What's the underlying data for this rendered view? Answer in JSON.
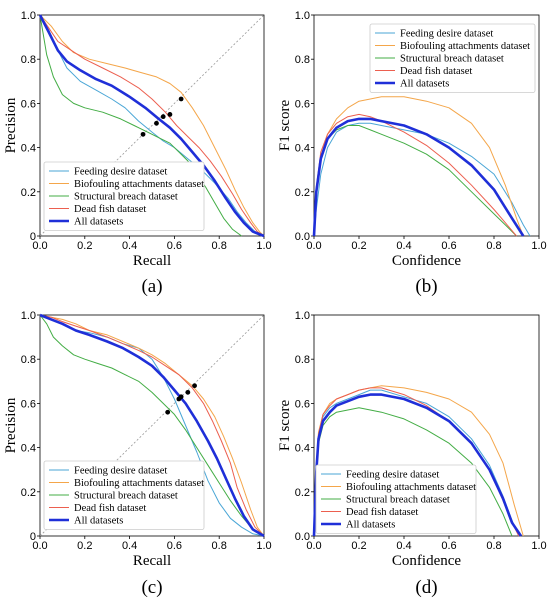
{
  "colors": {
    "feeding": "#4aa6d6",
    "biofouling": "#f4a64a",
    "structural": "#43ad45",
    "deadfish": "#ec5f4f",
    "all": "#1f2fd8"
  },
  "chart_data": [
    {
      "id": "a",
      "type": "line",
      "panel_label": "(a)",
      "xlabel": "Recall",
      "ylabel": "Precision",
      "xlim": [
        0,
        1
      ],
      "ylim": [
        0,
        1
      ],
      "xticks": [
        "0.0",
        "0.2",
        "0.4",
        "0.6",
        "0.8",
        "1.0"
      ],
      "yticks": [
        "0",
        "0.2",
        "0.4",
        "0.6",
        "0.8",
        "1.0"
      ],
      "diagonal": true,
      "legend_position": "bottom-left",
      "series": [
        {
          "name": "Feeding desire dataset",
          "color_key": "feeding",
          "width": 1,
          "x": [
            0,
            0.04,
            0.08,
            0.12,
            0.18,
            0.25,
            0.32,
            0.38,
            0.44,
            0.5,
            0.55,
            0.6,
            0.66,
            0.72,
            0.78,
            0.84,
            0.88,
            0.92,
            0.96,
            1.0
          ],
          "y": [
            1,
            0.93,
            0.84,
            0.76,
            0.7,
            0.66,
            0.62,
            0.58,
            0.52,
            0.47,
            0.43,
            0.4,
            0.35,
            0.3,
            0.24,
            0.17,
            0.11,
            0.06,
            0.02,
            0
          ]
        },
        {
          "name": "Biofouling attachments dataset",
          "color_key": "biofouling",
          "width": 1,
          "x": [
            0,
            0.05,
            0.1,
            0.15,
            0.22,
            0.3,
            0.38,
            0.45,
            0.52,
            0.58,
            0.63,
            0.68,
            0.73,
            0.78,
            0.83,
            0.87,
            0.91,
            0.95,
            0.98,
            1.0
          ],
          "y": [
            1,
            0.95,
            0.88,
            0.83,
            0.8,
            0.78,
            0.76,
            0.74,
            0.72,
            0.69,
            0.65,
            0.58,
            0.5,
            0.4,
            0.3,
            0.21,
            0.13,
            0.06,
            0.02,
            0
          ]
        },
        {
          "name": "Structural breach dataset",
          "color_key": "structural",
          "width": 1,
          "x": [
            0,
            0.03,
            0.06,
            0.1,
            0.15,
            0.2,
            0.28,
            0.36,
            0.42,
            0.48,
            0.54,
            0.58,
            0.62,
            0.66,
            0.7,
            0.74,
            0.78,
            0.82,
            0.86,
            0.9
          ],
          "y": [
            1,
            0.82,
            0.72,
            0.64,
            0.6,
            0.58,
            0.56,
            0.53,
            0.5,
            0.47,
            0.44,
            0.42,
            0.38,
            0.34,
            0.28,
            0.22,
            0.15,
            0.08,
            0.03,
            0
          ]
        },
        {
          "name": "Dead fish dataset",
          "color_key": "deadfish",
          "width": 1,
          "x": [
            0,
            0.04,
            0.08,
            0.14,
            0.2,
            0.28,
            0.36,
            0.44,
            0.5,
            0.56,
            0.61,
            0.66,
            0.71,
            0.76,
            0.81,
            0.86,
            0.9,
            0.94,
            0.97,
            1.0
          ],
          "y": [
            1,
            0.94,
            0.88,
            0.84,
            0.8,
            0.76,
            0.72,
            0.67,
            0.62,
            0.56,
            0.5,
            0.45,
            0.4,
            0.34,
            0.27,
            0.19,
            0.12,
            0.06,
            0.02,
            0
          ]
        },
        {
          "name": "All datasets",
          "color_key": "all",
          "width": 2.6,
          "x": [
            0,
            0.04,
            0.08,
            0.12,
            0.18,
            0.25,
            0.32,
            0.4,
            0.47,
            0.53,
            0.58,
            0.63,
            0.68,
            0.73,
            0.78,
            0.83,
            0.87,
            0.91,
            0.95,
            1.0
          ],
          "y": [
            1,
            0.92,
            0.84,
            0.79,
            0.75,
            0.71,
            0.68,
            0.63,
            0.58,
            0.53,
            0.49,
            0.44,
            0.38,
            0.32,
            0.25,
            0.17,
            0.11,
            0.06,
            0.02,
            0
          ]
        }
      ],
      "markers": [
        {
          "x": 0.46,
          "y": 0.46
        },
        {
          "x": 0.52,
          "y": 0.51
        },
        {
          "x": 0.55,
          "y": 0.54
        },
        {
          "x": 0.58,
          "y": 0.55
        },
        {
          "x": 0.63,
          "y": 0.62
        }
      ]
    },
    {
      "id": "b",
      "type": "line",
      "panel_label": "(b)",
      "xlabel": "Confidence",
      "ylabel": "F1 score",
      "xlim": [
        0,
        1
      ],
      "ylim": [
        0,
        1
      ],
      "xticks": [
        "0.0",
        "0.2",
        "0.4",
        "0.6",
        "0.8",
        "1.0"
      ],
      "yticks": [
        "0.0",
        "0.2",
        "0.4",
        "0.6",
        "0.8",
        "1.0"
      ],
      "diagonal": false,
      "legend_position": "top-right",
      "series": [
        {
          "name": "Feeding desire dataset",
          "color_key": "feeding",
          "width": 1,
          "x": [
            0,
            0.01,
            0.03,
            0.06,
            0.1,
            0.15,
            0.2,
            0.25,
            0.3,
            0.4,
            0.5,
            0.6,
            0.7,
            0.8,
            0.88,
            0.93,
            0.96
          ],
          "y": [
            0,
            0.12,
            0.28,
            0.4,
            0.47,
            0.5,
            0.51,
            0.51,
            0.5,
            0.48,
            0.46,
            0.42,
            0.36,
            0.28,
            0.15,
            0.05,
            0
          ]
        },
        {
          "name": "Biofouling attachments dataset",
          "color_key": "biofouling",
          "width": 1,
          "x": [
            0,
            0.01,
            0.03,
            0.06,
            0.1,
            0.15,
            0.2,
            0.25,
            0.3,
            0.4,
            0.5,
            0.6,
            0.7,
            0.78,
            0.85,
            0.9,
            0.93
          ],
          "y": [
            0,
            0.2,
            0.36,
            0.46,
            0.53,
            0.58,
            0.61,
            0.62,
            0.63,
            0.63,
            0.61,
            0.58,
            0.51,
            0.4,
            0.23,
            0.08,
            0
          ]
        },
        {
          "name": "Structural breach dataset",
          "color_key": "structural",
          "width": 1,
          "x": [
            0,
            0.01,
            0.03,
            0.06,
            0.1,
            0.15,
            0.2,
            0.25,
            0.3,
            0.4,
            0.5,
            0.6,
            0.7,
            0.8,
            0.85,
            0.9
          ],
          "y": [
            0,
            0.2,
            0.36,
            0.44,
            0.48,
            0.5,
            0.5,
            0.48,
            0.46,
            0.42,
            0.37,
            0.3,
            0.2,
            0.1,
            0.05,
            0
          ]
        },
        {
          "name": "Dead fish dataset",
          "color_key": "deadfish",
          "width": 1,
          "x": [
            0,
            0.01,
            0.03,
            0.06,
            0.1,
            0.15,
            0.2,
            0.25,
            0.3,
            0.4,
            0.5,
            0.6,
            0.7,
            0.8,
            0.85,
            0.9
          ],
          "y": [
            0,
            0.22,
            0.38,
            0.46,
            0.51,
            0.54,
            0.55,
            0.54,
            0.52,
            0.47,
            0.41,
            0.33,
            0.23,
            0.12,
            0.06,
            0
          ]
        },
        {
          "name": "All datasets",
          "color_key": "all",
          "width": 2.6,
          "x": [
            0,
            0.01,
            0.03,
            0.06,
            0.1,
            0.15,
            0.2,
            0.25,
            0.3,
            0.4,
            0.5,
            0.6,
            0.7,
            0.8,
            0.88,
            0.93
          ],
          "y": [
            0,
            0.2,
            0.35,
            0.44,
            0.49,
            0.52,
            0.53,
            0.53,
            0.52,
            0.5,
            0.46,
            0.4,
            0.32,
            0.21,
            0.08,
            0
          ]
        }
      ]
    },
    {
      "id": "c",
      "type": "line",
      "panel_label": "(c)",
      "xlabel": "Recall",
      "ylabel": "Precision",
      "xlim": [
        0,
        1
      ],
      "ylim": [
        0,
        1
      ],
      "xticks": [
        "0.0",
        "0.2",
        "0.4",
        "0.6",
        "0.8",
        "1.0"
      ],
      "yticks": [
        "0",
        "0.2",
        "0.4",
        "0.6",
        "0.8",
        "1.0"
      ],
      "diagonal": true,
      "legend_position": "bottom-left",
      "series": [
        {
          "name": "Feeding desire dataset",
          "color_key": "feeding",
          "width": 1,
          "x": [
            0,
            0.05,
            0.1,
            0.16,
            0.22,
            0.3,
            0.37,
            0.44,
            0.5,
            0.55,
            0.6,
            0.65,
            0.7,
            0.75,
            0.8,
            0.85,
            0.9,
            0.95,
            1.0
          ],
          "y": [
            1,
            0.98,
            0.96,
            0.93,
            0.92,
            0.9,
            0.87,
            0.85,
            0.8,
            0.72,
            0.62,
            0.5,
            0.38,
            0.25,
            0.15,
            0.08,
            0.04,
            0.01,
            0
          ]
        },
        {
          "name": "Biofouling attachments dataset",
          "color_key": "biofouling",
          "width": 1,
          "x": [
            0,
            0.05,
            0.1,
            0.16,
            0.22,
            0.3,
            0.37,
            0.44,
            0.5,
            0.56,
            0.62,
            0.68,
            0.73,
            0.78,
            0.82,
            0.86,
            0.9,
            0.94,
            0.97,
            1.0
          ],
          "y": [
            1,
            0.99,
            0.98,
            0.96,
            0.93,
            0.91,
            0.88,
            0.85,
            0.82,
            0.78,
            0.73,
            0.68,
            0.62,
            0.54,
            0.45,
            0.35,
            0.24,
            0.12,
            0.04,
            0
          ]
        },
        {
          "name": "Structural breach dataset",
          "color_key": "structural",
          "width": 1,
          "x": [
            0,
            0.03,
            0.06,
            0.1,
            0.15,
            0.2,
            0.26,
            0.32,
            0.38,
            0.44,
            0.5,
            0.55,
            0.6,
            0.65,
            0.7,
            0.75,
            0.8,
            0.85,
            0.9,
            0.95,
            1.0
          ],
          "y": [
            1,
            0.96,
            0.9,
            0.86,
            0.82,
            0.8,
            0.78,
            0.76,
            0.73,
            0.7,
            0.65,
            0.6,
            0.55,
            0.48,
            0.4,
            0.32,
            0.24,
            0.16,
            0.09,
            0.03,
            0
          ]
        },
        {
          "name": "Dead fish dataset",
          "color_key": "deadfish",
          "width": 1,
          "x": [
            0,
            0.05,
            0.1,
            0.16,
            0.22,
            0.3,
            0.37,
            0.44,
            0.5,
            0.56,
            0.62,
            0.68,
            0.73,
            0.77,
            0.81,
            0.85,
            0.88,
            0.92,
            0.96,
            1.0
          ],
          "y": [
            1,
            0.99,
            0.97,
            0.95,
            0.93,
            0.9,
            0.87,
            0.84,
            0.81,
            0.77,
            0.73,
            0.67,
            0.6,
            0.52,
            0.43,
            0.33,
            0.22,
            0.12,
            0.04,
            0
          ]
        },
        {
          "name": "All datasets",
          "color_key": "all",
          "width": 2.6,
          "x": [
            0,
            0.05,
            0.1,
            0.16,
            0.22,
            0.3,
            0.37,
            0.44,
            0.5,
            0.55,
            0.6,
            0.65,
            0.7,
            0.75,
            0.79,
            0.83,
            0.87,
            0.91,
            0.95,
            1.0
          ],
          "y": [
            1,
            0.98,
            0.96,
            0.93,
            0.91,
            0.88,
            0.85,
            0.81,
            0.77,
            0.72,
            0.66,
            0.6,
            0.52,
            0.43,
            0.35,
            0.26,
            0.17,
            0.09,
            0.03,
            0
          ]
        }
      ],
      "markers": [
        {
          "x": 0.57,
          "y": 0.56
        },
        {
          "x": 0.62,
          "y": 0.62
        },
        {
          "x": 0.63,
          "y": 0.63
        },
        {
          "x": 0.66,
          "y": 0.65
        },
        {
          "x": 0.69,
          "y": 0.68
        }
      ]
    },
    {
      "id": "d",
      "type": "line",
      "panel_label": "(d)",
      "xlabel": "Confidence",
      "ylabel": "F1 score",
      "xlim": [
        0,
        1
      ],
      "ylim": [
        0,
        1
      ],
      "xticks": [
        "0.0",
        "0.2",
        "0.4",
        "0.6",
        "0.8",
        "1.0"
      ],
      "yticks": [
        "0.0",
        "0.2",
        "0.4",
        "0.6",
        "0.8",
        "1.0"
      ],
      "diagonal": false,
      "legend_position": "bottom-left",
      "series": [
        {
          "name": "Feeding desire dataset",
          "color_key": "feeding",
          "width": 1,
          "x": [
            0,
            0.01,
            0.02,
            0.04,
            0.07,
            0.1,
            0.15,
            0.2,
            0.25,
            0.3,
            0.4,
            0.5,
            0.6,
            0.7,
            0.78,
            0.84,
            0.88,
            0.91
          ],
          "y": [
            0,
            0.3,
            0.45,
            0.54,
            0.58,
            0.6,
            0.62,
            0.64,
            0.66,
            0.66,
            0.63,
            0.6,
            0.54,
            0.44,
            0.32,
            0.18,
            0.07,
            0
          ]
        },
        {
          "name": "Biofouling attachments dataset",
          "color_key": "biofouling",
          "width": 1,
          "x": [
            0,
            0.01,
            0.02,
            0.04,
            0.07,
            0.1,
            0.15,
            0.2,
            0.25,
            0.3,
            0.4,
            0.5,
            0.6,
            0.7,
            0.78,
            0.84,
            0.89,
            0.93
          ],
          "y": [
            0,
            0.32,
            0.47,
            0.55,
            0.6,
            0.62,
            0.64,
            0.66,
            0.67,
            0.68,
            0.67,
            0.65,
            0.62,
            0.56,
            0.46,
            0.33,
            0.14,
            0
          ]
        },
        {
          "name": "Structural breach dataset",
          "color_key": "structural",
          "width": 1,
          "x": [
            0,
            0.01,
            0.02,
            0.04,
            0.07,
            0.1,
            0.15,
            0.2,
            0.25,
            0.3,
            0.4,
            0.5,
            0.6,
            0.7,
            0.78,
            0.84,
            0.88
          ],
          "y": [
            0,
            0.28,
            0.42,
            0.5,
            0.54,
            0.56,
            0.57,
            0.58,
            0.57,
            0.56,
            0.53,
            0.48,
            0.42,
            0.33,
            0.22,
            0.1,
            0
          ]
        },
        {
          "name": "Dead fish dataset",
          "color_key": "deadfish",
          "width": 1,
          "x": [
            0,
            0.01,
            0.02,
            0.04,
            0.07,
            0.1,
            0.15,
            0.2,
            0.25,
            0.3,
            0.4,
            0.5,
            0.6,
            0.7,
            0.78,
            0.84,
            0.88,
            0.91
          ],
          "y": [
            0,
            0.3,
            0.46,
            0.55,
            0.59,
            0.62,
            0.64,
            0.66,
            0.67,
            0.67,
            0.64,
            0.59,
            0.52,
            0.42,
            0.3,
            0.16,
            0.06,
            0
          ]
        },
        {
          "name": "All datasets",
          "color_key": "all",
          "width": 2.6,
          "x": [
            0,
            0.01,
            0.02,
            0.04,
            0.07,
            0.1,
            0.15,
            0.2,
            0.25,
            0.3,
            0.4,
            0.5,
            0.6,
            0.7,
            0.78,
            0.84,
            0.88,
            0.92
          ],
          "y": [
            0,
            0.29,
            0.44,
            0.52,
            0.56,
            0.59,
            0.61,
            0.63,
            0.64,
            0.64,
            0.62,
            0.58,
            0.52,
            0.42,
            0.3,
            0.17,
            0.06,
            0
          ]
        }
      ]
    }
  ]
}
